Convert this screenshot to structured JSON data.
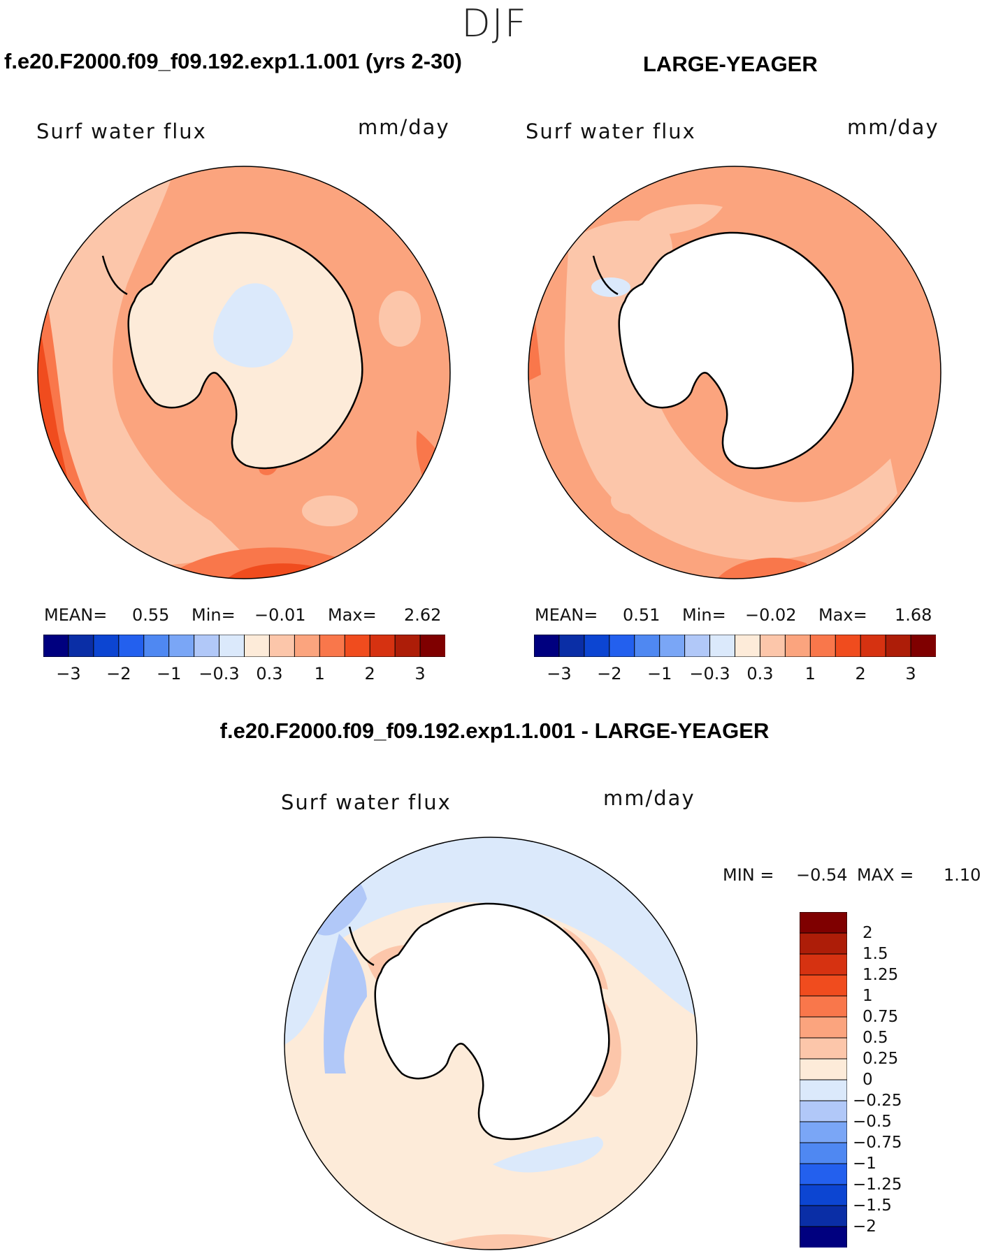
{
  "season": "DJF",
  "panels": [
    {
      "case_title": "f.e20.F2000.f09_f09.192.exp1.1.001 (yrs 2-30)",
      "variable": "Surf water flux",
      "units": "mm/day",
      "mean_label": "MEAN=",
      "mean": "0.55",
      "min_label": "Min=",
      "min": "−0.01",
      "max_label": "Max=",
      "max": "2.62"
    },
    {
      "case_title": "LARGE-YEAGER",
      "variable": "Surf water flux",
      "units": "mm/day",
      "mean_label": "MEAN=",
      "mean": "0.51",
      "min_label": "Min=",
      "min": "−0.02",
      "max_label": "Max=",
      "max": "1.68"
    }
  ],
  "colorbar_abs": {
    "colors": [
      "#00007f",
      "#0a2ea6",
      "#0c45d2",
      "#2360ee",
      "#4f88f2",
      "#7aa6f6",
      "#b1c8f8",
      "#dbe9fb",
      "#fdebd9",
      "#fcc6aa",
      "#fba47e",
      "#f9774b",
      "#f04c1e",
      "#d63211",
      "#ad1d08",
      "#7f0000"
    ],
    "tick_labels": [
      "−3",
      "−2",
      "−1",
      "−0.3",
      "0.3",
      "1",
      "2",
      "3"
    ]
  },
  "diff_panel": {
    "title": "f.e20.F2000.f09_f09.192.exp1.1.001 - LARGE-YEAGER",
    "variable": "Surf water flux",
    "units": "mm/day",
    "min_label": "MIN =",
    "min": "−0.54",
    "max_label": "MAX =",
    "max": "1.10"
  },
  "colorbar_diff": {
    "colors": [
      "#7f0000",
      "#ad1d08",
      "#d63211",
      "#f04c1e",
      "#f9774b",
      "#fba47e",
      "#fcc6aa",
      "#fdebd9",
      "#dbe9fb",
      "#b1c8f8",
      "#7aa6f6",
      "#4f88f2",
      "#2360ee",
      "#0c45d2",
      "#0a2ea6",
      "#00007f"
    ],
    "labels": [
      "2",
      "1.5",
      "1.25",
      "1",
      "0.75",
      "0.5",
      "0.25",
      "0",
      "−0.25",
      "−0.5",
      "−0.75",
      "−1",
      "−1.25",
      "−1.5",
      "−2"
    ]
  }
}
